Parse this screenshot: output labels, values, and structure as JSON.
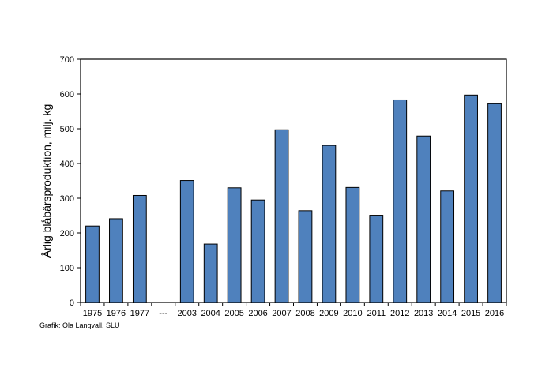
{
  "chart_data": {
    "type": "bar",
    "categories": [
      "1975",
      "1976",
      "1977",
      "---",
      "2003",
      "2004",
      "2005",
      "2006",
      "2007",
      "2008",
      "2009",
      "2010",
      "2011",
      "2012",
      "2013",
      "2014",
      "2015",
      "2016"
    ],
    "values": [
      220,
      241,
      308,
      null,
      351,
      168,
      330,
      295,
      497,
      264,
      452,
      331,
      251,
      583,
      479,
      321,
      597,
      572
    ],
    "xlabel": "",
    "ylabel": "Årlig blåbärsproduktion, milj. kg",
    "ylim": [
      0,
      700
    ],
    "yticks": [
      0,
      100,
      200,
      300,
      400,
      500,
      600,
      700
    ],
    "grid": false,
    "bar_color": "#4f81bd",
    "bar_edge_color": "#000000"
  },
  "credit": "Grafik: Ola Langvall, SLU"
}
